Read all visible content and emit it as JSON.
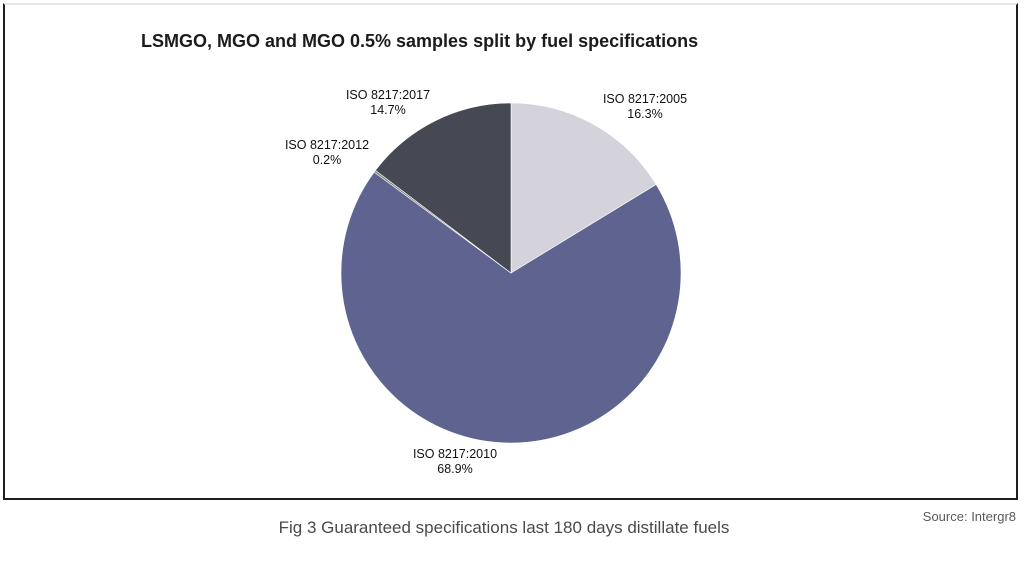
{
  "chart_data": {
    "type": "pie",
    "title": "LSMGO, MGO and MGO 0.5% samples split by fuel specifications",
    "categories": [
      "ISO 8217:2005",
      "ISO 8217:2010",
      "ISO 8217:2012",
      "ISO 8217:2017"
    ],
    "values": [
      16.3,
      68.9,
      0.2,
      14.7
    ],
    "value_labels": [
      "16.3%",
      "68.9%",
      "0.2%",
      "14.7%"
    ],
    "colors": [
      "#d4d2da",
      "#5f6390",
      "#7b8479",
      "#464954"
    ],
    "start_angle_deg": 0,
    "direction": "clockwise",
    "legend": "none"
  },
  "caption": "Fig 3 Guaranteed specifications last 180 days distillate fuels",
  "source": "Source: Intergr8"
}
